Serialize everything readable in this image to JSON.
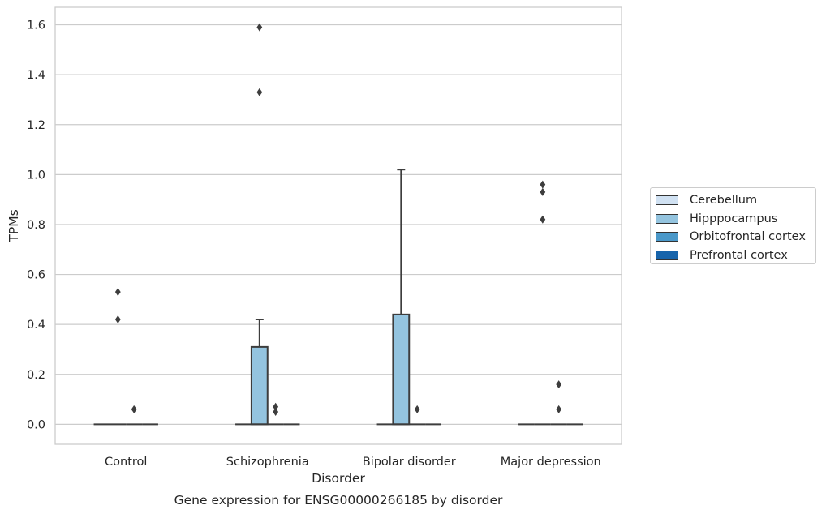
{
  "chart_data": {
    "type": "box",
    "title": "",
    "caption": "Gene expression for ENSG00000266185 by disorder",
    "xlabel": "Disorder",
    "ylabel": "TPMs",
    "ylim": [
      -0.08,
      1.67
    ],
    "yticks": [
      0.0,
      0.2,
      0.4,
      0.6,
      0.8,
      1.0,
      1.2,
      1.4,
      1.6
    ],
    "ytick_labels": [
      "0.0",
      "0.2",
      "0.4",
      "0.6",
      "0.8",
      "1.0",
      "1.2",
      "1.4",
      "1.6"
    ],
    "grid": "horizontal",
    "legend_position": "right",
    "categories": [
      "Control",
      "Schizophrenia",
      "Bipolar disorder",
      "Major depression"
    ],
    "series": [
      {
        "name": "Cerebellum",
        "color": "#d0e1f2",
        "boxes": [
          {
            "q1": 0,
            "median": 0,
            "q3": 0,
            "whisker_low": 0,
            "whisker_high": 0,
            "outliers": []
          },
          {
            "q1": 0,
            "median": 0,
            "q3": 0,
            "whisker_low": 0,
            "whisker_high": 0,
            "outliers": []
          },
          {
            "q1": 0,
            "median": 0,
            "q3": 0,
            "whisker_low": 0,
            "whisker_high": 0,
            "outliers": []
          },
          {
            "q1": 0,
            "median": 0,
            "q3": 0,
            "whisker_low": 0,
            "whisker_high": 0,
            "outliers": []
          }
        ]
      },
      {
        "name": "Hipppocampus",
        "color": "#94c4df",
        "boxes": [
          {
            "q1": 0,
            "median": 0,
            "q3": 0,
            "whisker_low": 0,
            "whisker_high": 0,
            "outliers": [
              0.42,
              0.53
            ]
          },
          {
            "q1": 0,
            "median": 0,
            "q3": 0.31,
            "whisker_low": 0,
            "whisker_high": 0.42,
            "outliers": [
              1.33,
              1.59
            ]
          },
          {
            "q1": 0,
            "median": 0,
            "q3": 0.44,
            "whisker_low": 0,
            "whisker_high": 1.02,
            "outliers": []
          },
          {
            "q1": 0,
            "median": 0,
            "q3": 0,
            "whisker_low": 0,
            "whisker_high": 0,
            "outliers": [
              0.82,
              0.93,
              0.96
            ]
          }
        ]
      },
      {
        "name": "Orbitofrontal cortex",
        "color": "#4a98c9",
        "boxes": [
          {
            "q1": 0,
            "median": 0,
            "q3": 0,
            "whisker_low": 0,
            "whisker_high": 0,
            "outliers": [
              0.06
            ]
          },
          {
            "q1": 0,
            "median": 0,
            "q3": 0,
            "whisker_low": 0,
            "whisker_high": 0,
            "outliers": [
              0.05,
              0.07
            ]
          },
          {
            "q1": 0,
            "median": 0,
            "q3": 0,
            "whisker_low": 0,
            "whisker_high": 0,
            "outliers": [
              0.06
            ]
          },
          {
            "q1": 0,
            "median": 0,
            "q3": 0,
            "whisker_low": 0,
            "whisker_high": 0,
            "outliers": [
              0.06,
              0.16
            ]
          }
        ]
      },
      {
        "name": "Prefrontal cortex",
        "color": "#1764ab",
        "boxes": [
          {
            "q1": 0,
            "median": 0,
            "q3": 0,
            "whisker_low": 0,
            "whisker_high": 0,
            "outliers": []
          },
          {
            "q1": 0,
            "median": 0,
            "q3": 0,
            "whisker_low": 0,
            "whisker_high": 0,
            "outliers": []
          },
          {
            "q1": 0,
            "median": 0,
            "q3": 0,
            "whisker_low": 0,
            "whisker_high": 0,
            "outliers": []
          },
          {
            "q1": 0,
            "median": 0,
            "q3": 0,
            "whisker_low": 0,
            "whisker_high": 0,
            "outliers": []
          }
        ]
      }
    ]
  }
}
